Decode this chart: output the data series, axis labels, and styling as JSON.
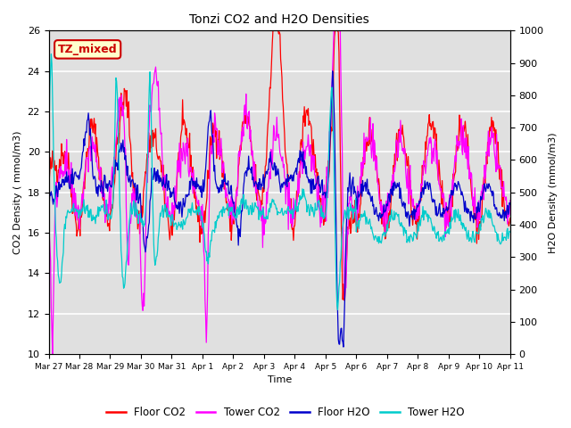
{
  "title": "Tonzi CO2 and H2O Densities",
  "xlabel": "Time",
  "ylabel_left": "CO2 Density ( mmol/m3)",
  "ylabel_right": "H2O Density (mmol/m3)",
  "ylim_left": [
    10,
    26
  ],
  "ylim_right": [
    0,
    1000
  ],
  "xtick_labels": [
    "Mar 27",
    "Mar 28",
    "Mar 29",
    "Mar 30",
    "Mar 31",
    "Apr 1",
    "Apr 2",
    "Apr 3",
    "Apr 4",
    "Apr 5",
    "Apr 6",
    "Apr 7",
    "Apr 8",
    "Apr 9",
    "Apr 10",
    "Apr 11"
  ],
  "annotation_text": "TZ_mixed",
  "annotation_color": "#cc0000",
  "annotation_bg": "#ffffcc",
  "legend_entries": [
    "Floor CO2",
    "Tower CO2",
    "Floor H2O",
    "Tower H2O"
  ],
  "line_colors": [
    "#ff0000",
    "#ff00ff",
    "#0000cc",
    "#00cccc"
  ],
  "background_color": "#e0e0e0",
  "grid_color": "#ffffff",
  "fig_width": 6.4,
  "fig_height": 4.8,
  "dpi": 100
}
